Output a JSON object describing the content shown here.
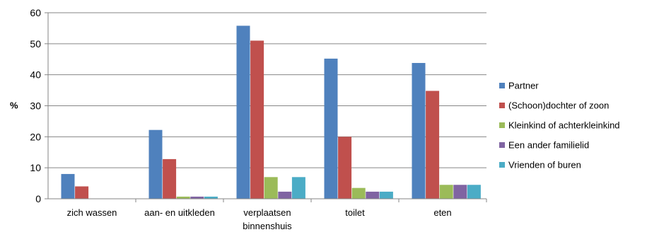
{
  "chart_data": {
    "type": "bar",
    "title": "",
    "xlabel": "",
    "ylabel": "%",
    "ylim": [
      0,
      60
    ],
    "yticks": [
      0,
      10,
      20,
      30,
      40,
      50,
      60
    ],
    "grid": true,
    "legend_position": "right",
    "categories": [
      [
        "zich wassen"
      ],
      [
        "aan- en uitkleden"
      ],
      [
        "verplaatsen",
        "binnenshuis"
      ],
      [
        "toilet"
      ],
      [
        "eten"
      ]
    ],
    "series": [
      {
        "name": "Partner",
        "color": "#4F81BD",
        "values": [
          8,
          22.2,
          55.8,
          45.2,
          43.8
        ]
      },
      {
        "name": "(Schoon)dochter of zoon",
        "color": "#C0504D",
        "values": [
          4,
          12.8,
          51,
          20,
          34.8
        ]
      },
      {
        "name": "Kleinkind of achterkleinkind",
        "color": "#9BBB59",
        "values": [
          0,
          0.7,
          7,
          3.5,
          4.5
        ]
      },
      {
        "name": "Een ander familielid",
        "color": "#8064A2",
        "values": [
          0,
          0.7,
          2.3,
          2.3,
          4.5
        ]
      },
      {
        "name": "Vrienden of buren",
        "color": "#4BACC6",
        "values": [
          0,
          0.7,
          7,
          2.3,
          4.5
        ]
      }
    ]
  }
}
